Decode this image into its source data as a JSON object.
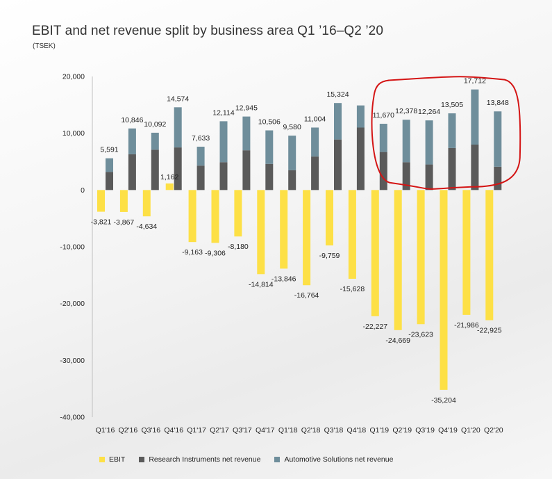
{
  "header": {
    "title": "EBIT and net revenue split by business area Q1 ’16–Q2 ’20",
    "unit": "(TSEK)"
  },
  "colors": {
    "ebit": "#fde046",
    "research": "#5a5a5a",
    "automotive": "#6f8e9b",
    "highlight": "#d41515"
  },
  "chart_data": {
    "type": "bar",
    "title": "EBIT and net revenue split by business area Q1 ’16–Q2 ’20",
    "ylabel": "(TSEK)",
    "ylim": [
      -40000,
      20000
    ],
    "yticks": [
      20000,
      10000,
      0,
      -10000,
      -20000,
      -30000,
      -40000
    ],
    "ytick_labels": [
      "20,000",
      "10,000",
      "0",
      "-10,000",
      "-20,000",
      "-30,000",
      "-40,000"
    ],
    "categories": [
      "Q1'16",
      "Q2'16",
      "Q3'16",
      "Q4'16",
      "Q1'17",
      "Q2'17",
      "Q3'17",
      "Q4'17",
      "Q1'18",
      "Q2'18",
      "Q3'18",
      "Q4'18",
      "Q1'19",
      "Q2'19",
      "Q3'19",
      "Q4'19",
      "Q1'20",
      "Q2'20"
    ],
    "series": [
      {
        "name": "EBIT",
        "stack": "ebit",
        "values": [
          -3821,
          -3867,
          -4634,
          1162,
          -9163,
          -9306,
          -8180,
          -14814,
          -13846,
          -16764,
          -9759,
          -15628,
          -22227,
          -24669,
          -23623,
          -35204,
          -21986,
          -22925
        ]
      },
      {
        "name": "Research Instruments net revenue",
        "stack": "revenue",
        "values": [
          3200,
          6300,
          7100,
          7500,
          4300,
          4900,
          7000,
          4600,
          3500,
          5900,
          8900,
          11000,
          6700,
          4900,
          4500,
          7400,
          8000,
          4100
        ]
      },
      {
        "name": "Automotive Solutions net revenue",
        "stack": "revenue",
        "values": [
          2391,
          4546,
          2992,
          7074,
          3333,
          7214,
          5945,
          5906,
          6080,
          5104,
          6424,
          3900,
          4970,
          7478,
          7764,
          6105,
          9712,
          9748
        ]
      }
    ],
    "revenue_total_labels": [
      "5,591",
      "10,846",
      "10,092",
      "14,574",
      "7,633",
      "12,114",
      "12,945",
      "10,506",
      "9,580",
      "11,004",
      "15,324",
      "",
      "11,670",
      "12,378",
      "12,264",
      "13,505",
      "17,712",
      "13,848"
    ],
    "ebit_labels": [
      "-3,821",
      "-3,867",
      "-4,634",
      "1,162",
      "-9,163",
      "-9,306",
      "-8,180",
      "-14,814",
      "-13,846",
      "-16,764",
      "-9,759",
      "-15,628",
      "-22,227",
      "-24,669",
      "-23,623",
      "-35,204",
      "-21,986",
      "-22,925"
    ],
    "legend": [
      "EBIT",
      "Research Instruments net revenue",
      "Automotive Solutions net revenue"
    ],
    "legend_position": "bottom",
    "annotation": "hand-drawn red outline around Q1'19–Q2'20 revenue bars"
  }
}
